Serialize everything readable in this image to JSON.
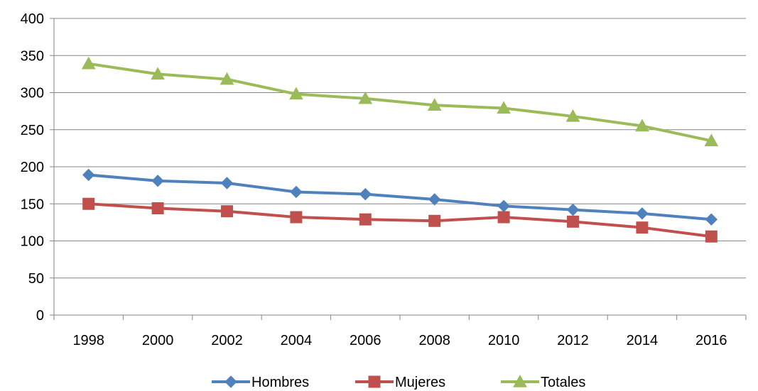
{
  "chart_data": {
    "type": "line",
    "title": "",
    "xlabel": "",
    "ylabel": "",
    "categories": [
      "1998",
      "2000",
      "2002",
      "2004",
      "2006",
      "2008",
      "2010",
      "2012",
      "2014",
      "2016"
    ],
    "ylim": [
      0,
      400
    ],
    "yticks": [
      0,
      50,
      100,
      150,
      200,
      250,
      300,
      350,
      400
    ],
    "grid": "horizontal",
    "legend_position": "bottom",
    "series": [
      {
        "name": "Hombres",
        "color": "#4F81BD",
        "marker": "diamond",
        "values": [
          189,
          181,
          178,
          166,
          163,
          156,
          147,
          142,
          137,
          129
        ]
      },
      {
        "name": "Mujeres",
        "color": "#C0504D",
        "marker": "square",
        "values": [
          150,
          144,
          140,
          132,
          129,
          127,
          132,
          126,
          118,
          106
        ]
      },
      {
        "name": "Totales",
        "color": "#9BBB59",
        "marker": "triangle",
        "values": [
          339,
          325,
          318,
          298,
          292,
          283,
          279,
          268,
          255,
          235
        ]
      }
    ]
  }
}
